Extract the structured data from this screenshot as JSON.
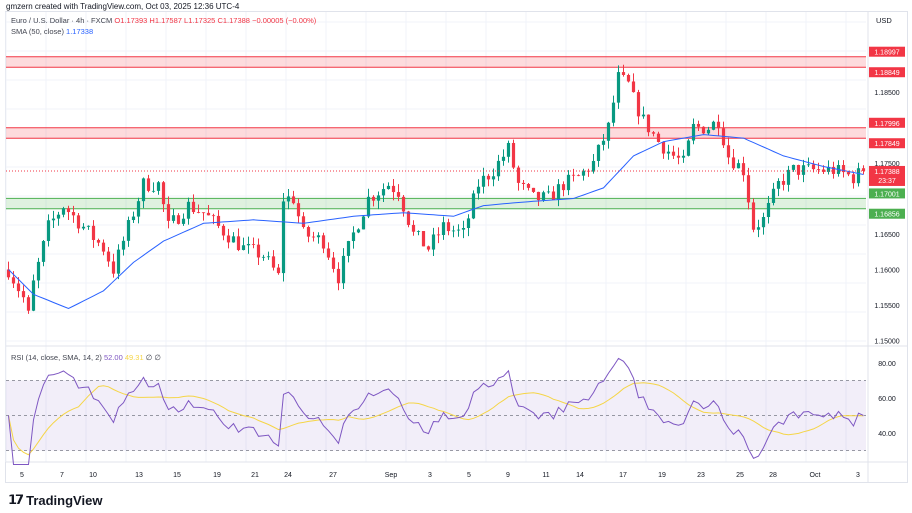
{
  "credit": "gmzern created with TradingView.com, Oct 03, 2025 12:36 UTC-4",
  "symbol": "Euro / U.S. Dollar · 4h · FXCM",
  "ohlc": {
    "o": "O1.17393",
    "h": "H1.17587",
    "l": "L1.17325",
    "c": "C1.17388",
    "chg": "−0.00005 (−0.00%)"
  },
  "sma_legend": {
    "label": "SMA (50, close)",
    "value": "1.17338"
  },
  "rsi_legend": {
    "label": "RSI (14, close, SMA, 14, 2)",
    "rsi": "52.00",
    "sma": "49.31",
    "extra": "∅ ∅"
  },
  "currency": "USD",
  "logo": "TradingView",
  "colors": {
    "up": "#089981",
    "down": "#f23645",
    "sma": "#2962ff",
    "rsi": "#7e57c2",
    "rsi_sma": "#f5d547",
    "resistance": "#f23645",
    "support": "#4caf50"
  },
  "chart_data": {
    "type": "candlestick",
    "title": "EUR/USD 4h",
    "ylim": [
      1.1475,
      1.1975
    ],
    "y_ticks": [
      "1.18500",
      "1.17500",
      "1.16500",
      "1.16000",
      "1.15500",
      "1.15000"
    ],
    "x_ticks": [
      "5",
      "7",
      "10",
      "13",
      "15",
      "19",
      "21",
      "24",
      "27",
      "Sep",
      "3",
      "5",
      "9",
      "11",
      "14",
      "17",
      "19",
      "23",
      "25",
      "28",
      "Oct",
      "3"
    ],
    "current_price": {
      "label": "1.17388",
      "countdown": "23:37",
      "value": 1.17388
    },
    "zones": [
      {
        "type": "resistance",
        "top": 1.18997,
        "bottom": 1.18849,
        "top_label": "1.18997",
        "bottom_label": "1.18849"
      },
      {
        "type": "resistance",
        "top": 1.17996,
        "bottom": 1.17849,
        "top_label": "1.17996",
        "bottom_label": "1.17849"
      },
      {
        "type": "support",
        "top": 1.17001,
        "bottom": 1.16856,
        "top_label": "1.17001",
        "bottom_label": "1.16856"
      }
    ],
    "candle_count": 172,
    "price_path": [
      [
        0,
        1.16
      ],
      [
        3,
        1.156
      ],
      [
        4,
        1.1535
      ],
      [
        5,
        1.158
      ],
      [
        8,
        1.166
      ],
      [
        11,
        1.169
      ],
      [
        15,
        1.166
      ],
      [
        19,
        1.163
      ],
      [
        21,
        1.16
      ],
      [
        24,
        1.166
      ],
      [
        27,
        1.172
      ],
      [
        30,
        1.172
      ],
      [
        32,
        1.166
      ],
      [
        36,
        1.169
      ],
      [
        39,
        1.168
      ],
      [
        42,
        1.166
      ],
      [
        47,
        1.163
      ],
      [
        51,
        1.162
      ],
      [
        54,
        1.159
      ],
      [
        55,
        1.17
      ],
      [
        57,
        1.17
      ],
      [
        59,
        1.165
      ],
      [
        63,
        1.164
      ],
      [
        66,
        1.159
      ],
      [
        69,
        1.165
      ],
      [
        72,
        1.17
      ],
      [
        76,
        1.172
      ],
      [
        78,
        1.171
      ],
      [
        81,
        1.165
      ],
      [
        84,
        1.163
      ],
      [
        87,
        1.166
      ],
      [
        91,
        1.165
      ],
      [
        94,
        1.172
      ],
      [
        97,
        1.174
      ],
      [
        100,
        1.177
      ],
      [
        102,
        1.172
      ],
      [
        105,
        1.17
      ],
      [
        108,
        1.17
      ],
      [
        111,
        1.172
      ],
      [
        114,
        1.173
      ],
      [
        117,
        1.175
      ],
      [
        120,
        1.18
      ],
      [
        122,
        1.187
      ],
      [
        124,
        1.186
      ],
      [
        125,
        1.184
      ],
      [
        127,
        1.181
      ],
      [
        130,
        1.178
      ],
      [
        133,
        1.176
      ],
      [
        135,
        1.175
      ],
      [
        137,
        1.18
      ],
      [
        140,
        1.18
      ],
      [
        142,
        1.181
      ],
      [
        144,
        1.176
      ],
      [
        147,
        1.174
      ],
      [
        149,
        1.166
      ],
      [
        151,
        1.167
      ],
      [
        154,
        1.172
      ],
      [
        157,
        1.174
      ],
      [
        161,
        1.174
      ],
      [
        165,
        1.174
      ],
      [
        169,
        1.173
      ],
      [
        171,
        1.17388
      ]
    ],
    "sma_path": [
      [
        0,
        1.16
      ],
      [
        5,
        1.1565
      ],
      [
        12,
        1.1545
      ],
      [
        19,
        1.157
      ],
      [
        25,
        1.161
      ],
      [
        31,
        1.164
      ],
      [
        39,
        1.1665
      ],
      [
        49,
        1.167
      ],
      [
        59,
        1.1665
      ],
      [
        69,
        1.1675
      ],
      [
        79,
        1.168
      ],
      [
        89,
        1.1675
      ],
      [
        95,
        1.169
      ],
      [
        103,
        1.1695
      ],
      [
        113,
        1.17
      ],
      [
        119,
        1.1715
      ],
      [
        125,
        1.176
      ],
      [
        131,
        1.178
      ],
      [
        139,
        1.179
      ],
      [
        147,
        1.1785
      ],
      [
        155,
        1.176
      ],
      [
        163,
        1.1745
      ],
      [
        171,
        1.17338
      ]
    ],
    "rsi": {
      "ylim": [
        20,
        90
      ],
      "y_ticks": [
        "80.00",
        "60.00",
        "40.00"
      ],
      "band": [
        30,
        70
      ],
      "mid": 50
    }
  }
}
